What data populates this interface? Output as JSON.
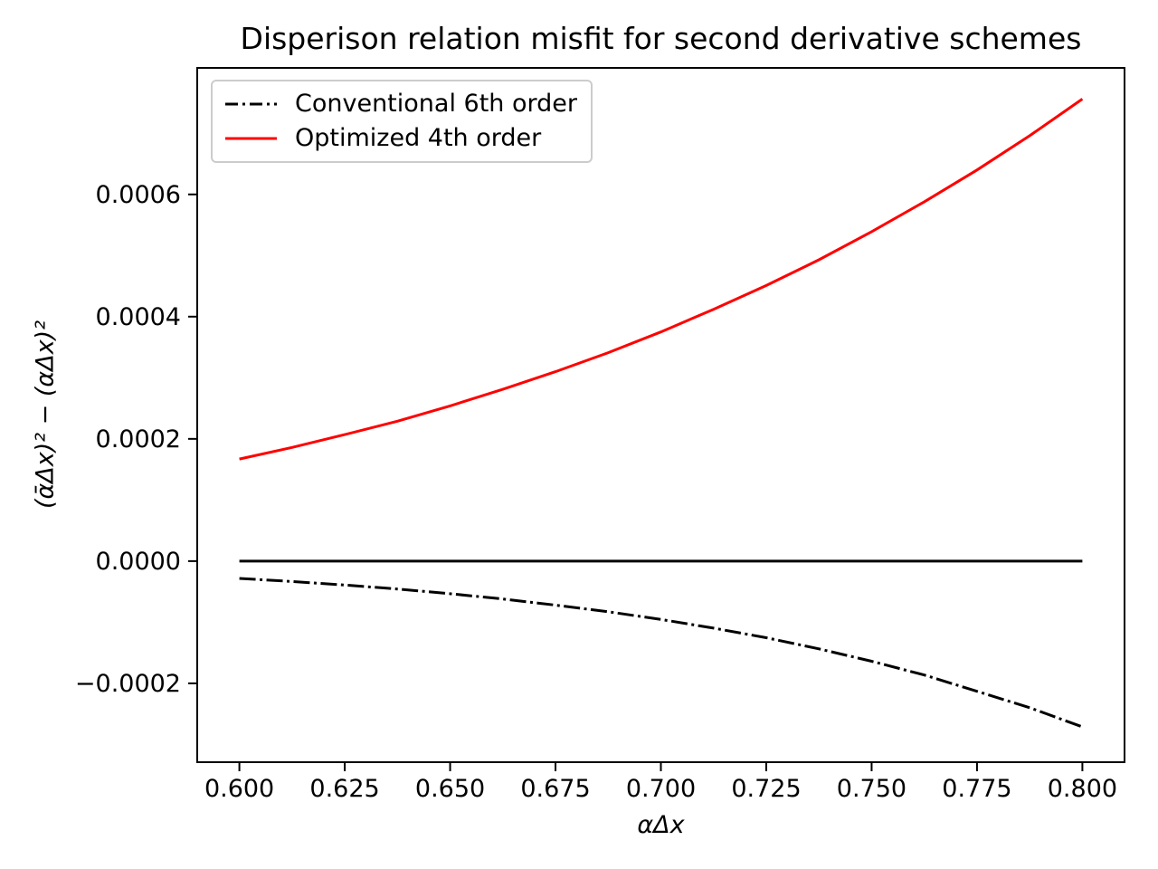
{
  "chart_data": {
    "type": "line",
    "title": "Disperison relation misfit for second derivative schemes",
    "xlabel": "αΔx",
    "ylabel": "(ᾱΔx)² − (αΔx)²",
    "xlim": [
      0.59,
      0.81
    ],
    "ylim": [
      -0.000329,
      0.000807
    ],
    "grid": false,
    "legend_position": "upper left",
    "x_ticks": {
      "values": [
        0.6,
        0.625,
        0.65,
        0.675,
        0.7,
        0.725,
        0.75,
        0.775,
        0.8
      ],
      "labels": [
        "0.600",
        "0.625",
        "0.650",
        "0.675",
        "0.700",
        "0.725",
        "0.750",
        "0.775",
        "0.800"
      ]
    },
    "y_ticks": {
      "values": [
        -0.0002,
        0.0,
        0.0002,
        0.0004,
        0.0006
      ],
      "labels": [
        "−0.0002",
        "0.0000",
        "0.0002",
        "0.0004",
        "0.0006"
      ]
    },
    "x": [
      0.6,
      0.6125,
      0.625,
      0.6375,
      0.65,
      0.6625,
      0.675,
      0.6875,
      0.7,
      0.7125,
      0.725,
      0.7375,
      0.75,
      0.7625,
      0.775,
      0.7875,
      0.8
    ],
    "series": [
      {
        "id": "conventional-6th-order",
        "name": "Conventional 6th order",
        "color": "#000000",
        "style": "dashdot",
        "in_legend": true,
        "values": [
          -2.84e-05,
          -3.33e-05,
          -3.91e-05,
          -4.57e-05,
          -5.33e-05,
          -6.19e-05,
          -7.2e-05,
          -8.28e-05,
          -9.54e-05,
          -0.0001096,
          -0.0001253,
          -0.0001436,
          -0.0001638,
          -0.0001864,
          -0.0002131,
          -0.0002399,
          -0.0002713
        ]
      },
      {
        "id": "zero-line",
        "name": "",
        "color": "#000000",
        "style": "solid",
        "in_legend": false,
        "values": [
          0,
          0,
          0,
          0,
          0,
          0,
          0,
          0,
          0,
          0,
          0,
          0,
          0,
          0,
          0,
          0,
          0
        ]
      },
      {
        "id": "optimized-4th-order",
        "name": "Optimized 4th order",
        "color": "#ff0000",
        "style": "solid",
        "in_legend": true,
        "values": [
          0.000167,
          0.000186,
          0.000207,
          0.000229,
          0.000254,
          0.000281,
          0.00031,
          0.000341,
          0.000375,
          0.000412,
          0.000451,
          0.000493,
          0.000539,
          0.000588,
          0.00064,
          0.000696,
          0.000756
        ]
      }
    ],
    "colors": {
      "axis": "#000000",
      "legend_border": "#cccccc",
      "background": "#ffffff",
      "optimized_line": "#ff0000",
      "conventional_line": "#000000"
    }
  }
}
